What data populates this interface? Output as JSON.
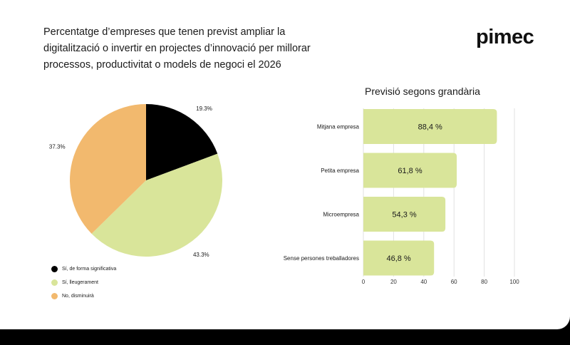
{
  "header": {
    "title": "Percentatge d’empreses que tenen previst ampliar la digitalització o invertir en projectes d’innovació per millorar processos, productivitat o models de negoci el 2026",
    "brand": "pimec"
  },
  "chart_data": [
    {
      "type": "pie",
      "title": "",
      "labels": [
        "Sí, de forma significativa",
        "Sí, lleugerament",
        "No, disminuirà"
      ],
      "values": [
        19.3,
        43.3,
        37.3
      ],
      "value_labels": [
        "19.3%",
        "43.3%",
        "37.3%"
      ],
      "colors": [
        "#000000",
        "#d9e59a",
        "#f2b96e"
      ],
      "legend_position": "bottom-left"
    },
    {
      "type": "bar",
      "orientation": "horizontal",
      "title": "Previsió segons grandària",
      "categories": [
        "Mitjana empresa",
        "Petita empresa",
        "Microempresa",
        "Sense persones treballadores"
      ],
      "values": [
        88.4,
        61.8,
        54.3,
        46.8
      ],
      "value_labels": [
        "88,4 %",
        "61,8 %",
        "54,3 %",
        "46,8 %"
      ],
      "xlim": [
        0,
        100
      ],
      "xticks": [
        0,
        20,
        40,
        60,
        80,
        100
      ],
      "grid": true,
      "bar_color": "#d9e59a"
    }
  ]
}
